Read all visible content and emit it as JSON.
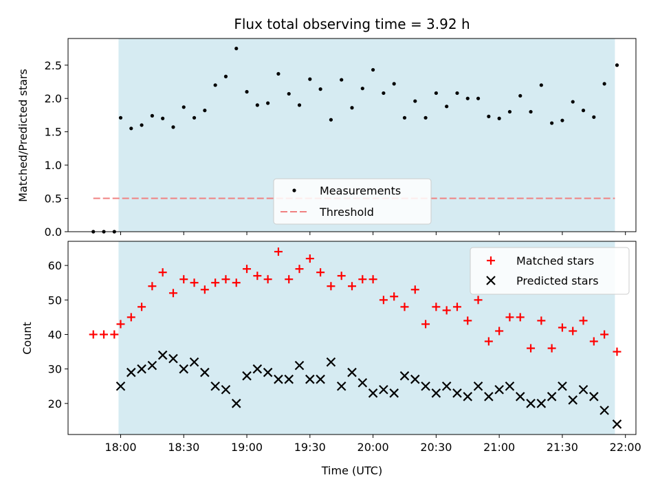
{
  "colors": {
    "shade": "#add8e6",
    "measurement": "#000000",
    "threshold": "#f08080",
    "matched": "#ff0000",
    "predicted": "#000000"
  },
  "chart_data": [
    {
      "type": "scatter",
      "title": "Flux total observing time = 3.92 h",
      "ylabel": "Matched/Predicted stars",
      "xlim": [
        "17:35",
        "22:05"
      ],
      "ylim": [
        0,
        2.9
      ],
      "xticks": [
        "18:00",
        "18:30",
        "19:00",
        "19:30",
        "20:00",
        "20:30",
        "21:00",
        "21:30",
        "22:00"
      ],
      "yticks": [
        "0.0",
        "0.5",
        "1.0",
        "1.5",
        "2.0",
        "2.5"
      ],
      "shaded_interval": [
        "17:59",
        "21:55"
      ],
      "threshold": {
        "name": "Threshold",
        "value": 0.5,
        "x_start": "17:47",
        "x_end": "21:55"
      },
      "legend": {
        "placement": "lower-center",
        "entries": [
          "Measurements",
          "Threshold"
        ]
      },
      "series": [
        {
          "name": "Measurements",
          "x": [
            "17:47",
            "17:52",
            "17:57",
            "18:00",
            "18:05",
            "18:10",
            "18:15",
            "18:20",
            "18:25",
            "18:30",
            "18:35",
            "18:40",
            "18:45",
            "18:50",
            "18:55",
            "19:00",
            "19:05",
            "19:10",
            "19:15",
            "19:20",
            "19:25",
            "19:30",
            "19:35",
            "19:40",
            "19:45",
            "19:50",
            "19:55",
            "20:00",
            "20:05",
            "20:10",
            "20:15",
            "20:20",
            "20:25",
            "20:30",
            "20:35",
            "20:40",
            "20:45",
            "20:50",
            "20:55",
            "21:00",
            "21:05",
            "21:10",
            "21:15",
            "21:20",
            "21:25",
            "21:30",
            "21:35",
            "21:40",
            "21:45",
            "21:50",
            "21:56"
          ],
          "y": [
            0,
            0,
            0,
            1.71,
            1.55,
            1.6,
            1.74,
            1.7,
            1.57,
            1.87,
            1.71,
            1.82,
            2.2,
            2.33,
            2.75,
            2.1,
            1.9,
            1.93,
            2.37,
            2.07,
            1.9,
            2.29,
            2.14,
            1.68,
            2.28,
            1.86,
            2.15,
            2.43,
            2.08,
            2.22,
            1.71,
            1.96,
            1.71,
            2.08,
            1.88,
            2.08,
            2.0,
            2.0,
            1.73,
            1.7,
            1.8,
            2.04,
            1.8,
            2.2,
            1.63,
            1.67,
            1.95,
            1.82,
            1.72,
            2.22,
            2.5
          ]
        }
      ]
    },
    {
      "type": "scatter",
      "xlabel": "Time (UTC)",
      "ylabel": "Count",
      "xlim": [
        "17:35",
        "22:05"
      ],
      "ylim": [
        11,
        67
      ],
      "xticks": [
        "18:00",
        "18:30",
        "19:00",
        "19:30",
        "20:00",
        "20:30",
        "21:00",
        "21:30",
        "22:00"
      ],
      "yticks": [
        "20",
        "30",
        "40",
        "50",
        "60"
      ],
      "shaded_interval": [
        "17:59",
        "21:55"
      ],
      "legend": {
        "placement": "upper-right",
        "entries": [
          "Matched stars",
          "Predicted stars"
        ]
      },
      "series": [
        {
          "name": "Matched stars",
          "marker": "plus",
          "x": [
            "17:47",
            "17:52",
            "17:57",
            "18:00",
            "18:05",
            "18:10",
            "18:15",
            "18:20",
            "18:25",
            "18:30",
            "18:35",
            "18:40",
            "18:45",
            "18:50",
            "18:55",
            "19:00",
            "19:05",
            "19:10",
            "19:15",
            "19:20",
            "19:25",
            "19:30",
            "19:35",
            "19:40",
            "19:45",
            "19:50",
            "19:55",
            "20:00",
            "20:05",
            "20:10",
            "20:15",
            "20:20",
            "20:25",
            "20:30",
            "20:35",
            "20:40",
            "20:45",
            "20:50",
            "20:55",
            "21:00",
            "21:05",
            "21:10",
            "21:15",
            "21:20",
            "21:25",
            "21:30",
            "21:35",
            "21:40",
            "21:45",
            "21:50",
            "21:56"
          ],
          "y": [
            40,
            40,
            40,
            43,
            45,
            48,
            54,
            58,
            52,
            56,
            55,
            53,
            55,
            56,
            55,
            59,
            57,
            56,
            64,
            56,
            59,
            62,
            58,
            54,
            57,
            54,
            56,
            56,
            50,
            51,
            48,
            53,
            43,
            48,
            47,
            48,
            44,
            50,
            38,
            41,
            45,
            45,
            36,
            44,
            36,
            42,
            41,
            44,
            38,
            40,
            35
          ]
        },
        {
          "name": "Predicted stars",
          "marker": "x",
          "x": [
            "18:00",
            "18:05",
            "18:10",
            "18:15",
            "18:20",
            "18:25",
            "18:30",
            "18:35",
            "18:40",
            "18:45",
            "18:50",
            "18:55",
            "19:00",
            "19:05",
            "19:10",
            "19:15",
            "19:20",
            "19:25",
            "19:30",
            "19:35",
            "19:40",
            "19:45",
            "19:50",
            "19:55",
            "20:00",
            "20:05",
            "20:10",
            "20:15",
            "20:20",
            "20:25",
            "20:30",
            "20:35",
            "20:40",
            "20:45",
            "20:50",
            "20:55",
            "21:00",
            "21:05",
            "21:10",
            "21:15",
            "21:20",
            "21:25",
            "21:30",
            "21:35",
            "21:40",
            "21:45",
            "21:50",
            "21:56"
          ],
          "y": [
            25,
            29,
            30,
            31,
            34,
            33,
            30,
            32,
            29,
            25,
            24,
            20,
            28,
            30,
            29,
            27,
            27,
            31,
            27,
            27,
            32,
            25,
            29,
            26,
            23,
            24,
            23,
            28,
            27,
            25,
            23,
            25,
            23,
            22,
            25,
            22,
            24,
            25,
            22,
            20,
            20,
            22,
            25,
            21,
            24,
            22,
            18,
            14
          ]
        }
      ]
    }
  ]
}
